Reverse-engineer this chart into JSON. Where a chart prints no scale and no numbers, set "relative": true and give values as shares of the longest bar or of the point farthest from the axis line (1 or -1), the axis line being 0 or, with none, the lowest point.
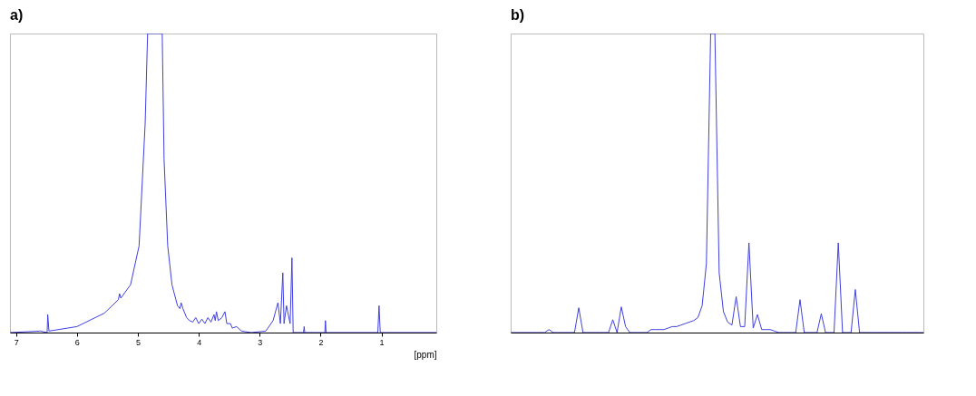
{
  "chart_data": [
    {
      "type": "line",
      "title": "a)",
      "xlabel": "[ppm]",
      "relative": true,
      "color": "#4040e0",
      "xlim": [
        7.1,
        0.1
      ],
      "xticks": [
        7,
        6,
        5,
        4,
        3,
        2,
        1
      ],
      "x": [
        7.1,
        6.6,
        6.49,
        6.48,
        6.46,
        6.0,
        5.55,
        5.32,
        5.3,
        5.28,
        5.12,
        4.98,
        4.88,
        4.84,
        4.6,
        4.57,
        4.51,
        4.44,
        4.35,
        4.31,
        4.29,
        4.26,
        4.2,
        4.15,
        4.1,
        4.05,
        4.0,
        3.95,
        3.9,
        3.85,
        3.8,
        3.75,
        3.73,
        3.71,
        3.68,
        3.62,
        3.57,
        3.54,
        3.48,
        3.45,
        3.38,
        3.3,
        3.14,
        2.9,
        2.78,
        2.7,
        2.66,
        2.62,
        2.6,
        2.56,
        2.5,
        2.47,
        2.45,
        2.28,
        2.27,
        2.26,
        1.93,
        1.92,
        1.91,
        1.06,
        1.04,
        1.02,
        0.1
      ],
      "values": [
        0,
        0.005,
        0,
        0.06,
        0.005,
        0.02,
        0.065,
        0.11,
        0.13,
        0.115,
        0.16,
        0.29,
        0.7,
        1,
        1,
        0.58,
        0.29,
        0.16,
        0.09,
        0.08,
        0.1,
        0.08,
        0.05,
        0.04,
        0.035,
        0.05,
        0.03,
        0.045,
        0.03,
        0.05,
        0.035,
        0.06,
        0.04,
        0.07,
        0.04,
        0.05,
        0.07,
        0.03,
        0.03,
        0.015,
        0.02,
        0.005,
        0,
        0.005,
        0.04,
        0.1,
        0.03,
        0.2,
        0.03,
        0.09,
        0.03,
        0.25,
        0,
        0,
        0.02,
        0,
        0,
        0.04,
        0,
        0,
        0.09,
        0,
        0
      ]
    },
    {
      "type": "line",
      "title": "b)",
      "relative": true,
      "tick_labels": false,
      "color": "#4040e0",
      "categories": [
        null,
        null,
        null,
        null,
        null,
        null,
        null,
        null,
        null,
        null,
        null,
        null,
        null,
        null,
        null,
        null,
        null,
        null,
        null,
        null,
        null,
        null,
        null,
        null,
        null,
        null,
        null,
        null,
        null,
        null,
        null,
        null,
        null,
        null,
        null,
        null,
        null,
        null,
        null,
        null,
        null,
        null,
        null,
        null,
        null,
        null,
        null,
        null,
        null,
        null,
        null,
        null,
        null,
        null,
        null,
        null,
        null,
        null,
        null,
        null,
        null,
        null,
        null,
        null,
        null,
        null,
        null,
        null,
        null,
        null,
        null,
        null,
        null,
        null,
        null,
        null,
        null,
        null,
        null,
        null,
        null,
        null,
        null,
        null,
        null,
        null,
        null,
        null,
        null,
        null,
        null,
        null,
        null,
        null,
        null,
        null,
        null,
        null
      ],
      "values": [
        0,
        0,
        0,
        0,
        0,
        0,
        0,
        0,
        0,
        0.01,
        0,
        0,
        0,
        0,
        0,
        0,
        0.083,
        0,
        0,
        0,
        0,
        0,
        0,
        0,
        0.043,
        0,
        0.086,
        0.02,
        0,
        0,
        0,
        0,
        0,
        0.01,
        0.01,
        0.01,
        0.01,
        0.015,
        0.02,
        0.02,
        0.025,
        0.03,
        0.035,
        0.04,
        0.05,
        0.09,
        0.23,
        1,
        1,
        0.2,
        0.07,
        0.035,
        0.025,
        0.12,
        0.02,
        0.02,
        0.3,
        0.015,
        0.06,
        0.01,
        0.01,
        0.01,
        0.005,
        0,
        0,
        0,
        0,
        0,
        0.11,
        0,
        0,
        0,
        0,
        0.063,
        0,
        0,
        0,
        0.3,
        0,
        0,
        0,
        0.144,
        0,
        0,
        0,
        0,
        0,
        0,
        0,
        0,
        0,
        0,
        0,
        0,
        0,
        0,
        0,
        0
      ]
    }
  ]
}
